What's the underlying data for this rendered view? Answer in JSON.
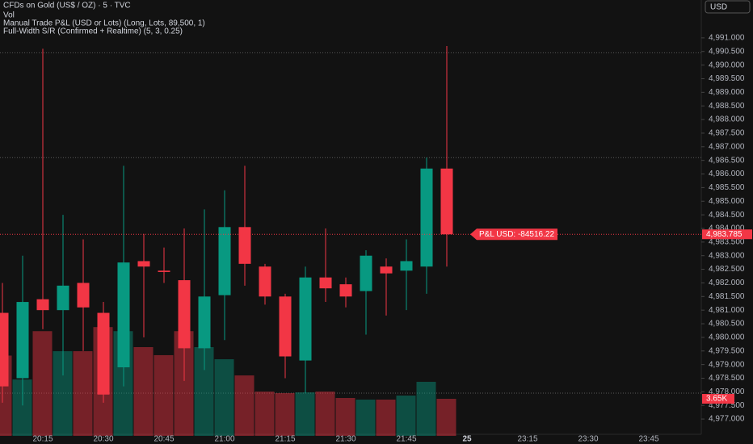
{
  "chart_data": {
    "type": "candlestick",
    "title": "CFDs on Gold (US$ / OZ) · 5 · TVC",
    "indicators": [
      "Vol",
      "Manual Trade P&L (USD or Lots) (Long, Lots, 89,500, 1)",
      "Full-Width S/R (Confirmed + Realtime) (5, 3, 0.25)"
    ],
    "currency": "USD",
    "categories": [
      null,
      null,
      "20:15",
      null,
      null,
      "20:30",
      null,
      null,
      "20:45",
      null,
      null,
      "21:00",
      null,
      null,
      "21:15",
      null,
      null,
      "21:30",
      null,
      null,
      "21:45",
      null,
      null,
      "25",
      null,
      null,
      "23:15",
      null,
      null,
      "23:30",
      null,
      null,
      "23:45",
      null,
      null
    ],
    "open": [
      4980.9,
      4978.5,
      4981.4,
      4981.0,
      4982.0,
      4980.9,
      4978.9,
      4982.8,
      4982.45,
      4982.1,
      4979.6,
      4981.55,
      4984.05,
      4982.6,
      4981.5,
      4979.15,
      4982.2,
      4981.95,
      4981.7,
      4982.6,
      4982.45,
      4982.6,
      4986.2,
      null,
      null,
      null,
      null,
      null,
      null,
      null,
      null,
      null,
      null,
      null,
      null
    ],
    "high": [
      4982.0,
      4983.0,
      4990.6,
      4984.5,
      4983.6,
      4981.3,
      4986.3,
      4983.8,
      4983.3,
      4984.0,
      4984.7,
      4985.4,
      4986.3,
      4982.7,
      4981.6,
      4982.6,
      4984.0,
      4982.2,
      4983.2,
      4982.9,
      4983.6,
      4986.6,
      4990.7,
      null,
      null,
      null,
      null,
      null,
      null,
      null,
      null,
      null,
      null,
      null,
      null
    ],
    "low": [
      4977.6,
      4977.5,
      4980.3,
      4978.6,
      4979.5,
      4977.6,
      4978.2,
      4980.0,
      4982.0,
      4978.4,
      4978.8,
      4979.9,
      4981.9,
      4981.2,
      4978.5,
      4977.95,
      4981.3,
      4981.1,
      4980.1,
      4980.8,
      4981.0,
      4981.6,
      4982.6,
      null,
      null,
      null,
      null,
      null,
      null,
      null,
      null,
      null,
      null,
      null,
      null
    ],
    "close": [
      4978.2,
      4981.3,
      4981.0,
      4981.9,
      4981.1,
      4977.9,
      4982.75,
      4982.6,
      4982.4,
      4979.6,
      4981.5,
      4984.05,
      4982.7,
      4981.5,
      4979.3,
      4982.2,
      4981.8,
      4981.5,
      4983.0,
      4982.35,
      4982.8,
      4986.2,
      4983.785,
      null,
      null,
      null,
      null,
      null,
      null,
      null,
      null,
      null,
      null,
      null,
      null
    ],
    "volume": [
      7900,
      5550,
      10300,
      8330,
      8330,
      10700,
      10300,
      8730,
      7940,
      10300,
      8730,
      7540,
      5950,
      4360,
      4210,
      4280,
      4360,
      3730,
      3570,
      3570,
      3970,
      5320,
      3650,
      null,
      null,
      null,
      null,
      null,
      null,
      null,
      null,
      null,
      null,
      null,
      null
    ],
    "up_color": "#089981",
    "down_color": "#f23645",
    "ylim": [
      4976.38,
      4992.39
    ],
    "volume_lim": [
      0,
      42860
    ],
    "yticks": [
      {
        "value": 4977.0,
        "label": "4,977.000"
      },
      {
        "value": 4977.5,
        "label": "4,977.500"
      },
      {
        "value": 4978.0,
        "label": "4,978.000"
      },
      {
        "value": 4978.5,
        "label": "4,978.500"
      },
      {
        "value": 4979.0,
        "label": "4,979.000"
      },
      {
        "value": 4979.5,
        "label": "4,979.500"
      },
      {
        "value": 4980.0,
        "label": "4,980.000"
      },
      {
        "value": 4980.5,
        "label": "4,980.500"
      },
      {
        "value": 4981.0,
        "label": "4,981.000"
      },
      {
        "value": 4981.5,
        "label": "4,981.500"
      },
      {
        "value": 4982.0,
        "label": "4,982.000"
      },
      {
        "value": 4982.5,
        "label": "4,982.500"
      },
      {
        "value": 4983.0,
        "label": "4,983.000"
      },
      {
        "value": 4983.5,
        "label": "4,983.500"
      },
      {
        "value": 4984.0,
        "label": "4,984.000"
      },
      {
        "value": 4984.5,
        "label": "4,984.500"
      },
      {
        "value": 4985.0,
        "label": "4,985.000"
      },
      {
        "value": 4985.5,
        "label": "4,985.500"
      },
      {
        "value": 4986.0,
        "label": "4,986.000"
      },
      {
        "value": 4986.5,
        "label": "4,986.500"
      },
      {
        "value": 4987.0,
        "label": "4,987.000"
      },
      {
        "value": 4987.5,
        "label": "4,987.500"
      },
      {
        "value": 4988.0,
        "label": "4,988.000"
      },
      {
        "value": 4988.5,
        "label": "4,988.500"
      },
      {
        "value": 4989.0,
        "label": "4,989.000"
      },
      {
        "value": 4989.5,
        "label": "4,989.500"
      },
      {
        "value": 4990.0,
        "label": "4,990.000"
      },
      {
        "value": 4990.5,
        "label": "4,990.500"
      },
      {
        "value": 4991.0,
        "label": "4,991.000"
      }
    ],
    "sr_levels": [
      4990.45,
      4986.6,
      4977.95
    ],
    "last_price": {
      "value": 4983.785,
      "label": "4,983.785"
    },
    "last_volume": {
      "value": 3650,
      "label": "3.65K"
    },
    "pnl_label": "P&L USD: -84516.22"
  }
}
